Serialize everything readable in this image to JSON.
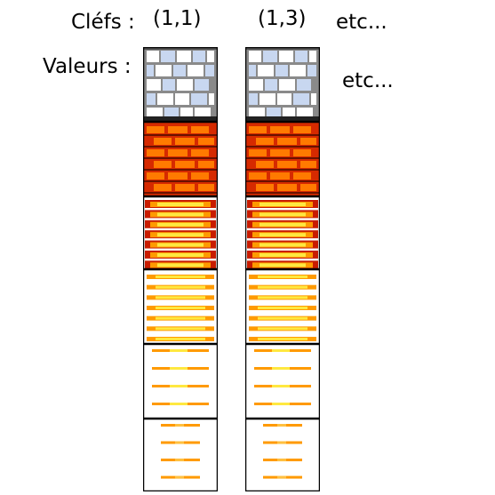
{
  "labels": {
    "keys": "Cléfs :",
    "values": "Valeurs :",
    "keys_etc": "etc...",
    "values_etc": "etc..."
  },
  "keys": [
    "(1,1)",
    "(1,3)"
  ],
  "tiles": [
    {
      "name": "stone-wall-tile",
      "kind": "stone"
    },
    {
      "name": "red-brick-tile",
      "kind": "brick"
    },
    {
      "name": "dense-lava-tile",
      "kind": "lava-dense"
    },
    {
      "name": "lava-tile",
      "kind": "lava-medium"
    },
    {
      "name": "light-lava-tile",
      "kind": "lava-light"
    },
    {
      "name": "faint-lava-tile",
      "kind": "lava-faint"
    }
  ],
  "colors": {
    "stone_light": "#c8d7f0",
    "stone_white": "#ffffff",
    "stone_mortar": "#8a8a8a",
    "brick_red": "#d62a00",
    "brick_orange": "#ff7a00",
    "brick_dark": "#6a1200",
    "lava_yellow": "#ffe840",
    "lava_orange": "#ff9a00",
    "lava_red": "#c81c00",
    "border": "#000000"
  }
}
